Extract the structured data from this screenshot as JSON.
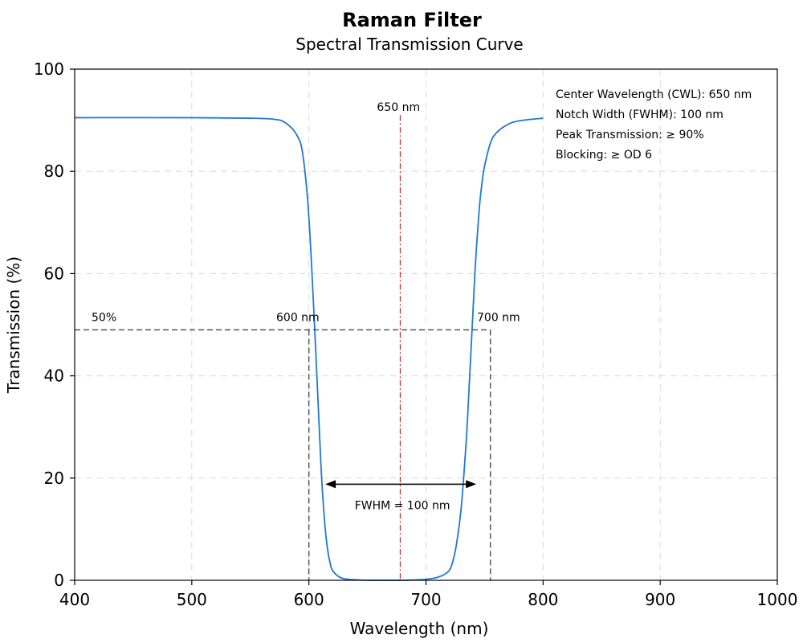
{
  "chart_data": {
    "type": "line",
    "title": "Raman Filter",
    "subtitle": "Spectral Transmission Curve",
    "xlabel": "Wavelength (nm)",
    "ylabel": "Transmission (%)",
    "xlim": [
      400,
      1000
    ],
    "ylim": [
      0,
      100
    ],
    "xticks": [
      400,
      500,
      600,
      700,
      800,
      900,
      1000
    ],
    "yticks": [
      0,
      20,
      40,
      60,
      80,
      100
    ],
    "xtick_labels": [
      "400",
      "500",
      "600",
      "700",
      "800",
      "900",
      "1000"
    ],
    "ytick_labels": [
      "0",
      "20",
      "40",
      "60",
      "80",
      "100"
    ],
    "grid": true,
    "series": [
      {
        "x": [
          400,
          500,
          550,
          570,
          580,
          590,
          595,
          600,
          605,
          610,
          612,
          614,
          616,
          618,
          620,
          625,
          630,
          640,
          650,
          660,
          680,
          700,
          710,
          718,
          722,
          726,
          730,
          734,
          736,
          738,
          740,
          742,
          744,
          746,
          748,
          750,
          755,
          760,
          770,
          780,
          800
        ],
        "y": [
          90.5,
          90.5,
          90.4,
          90.2,
          89.5,
          87.0,
          83.0,
          71.0,
          49.0,
          24.0,
          16.0,
          10.0,
          6.0,
          3.5,
          2.0,
          0.8,
          0.3,
          0.1,
          0.0,
          0.0,
          0.0,
          0.2,
          0.6,
          1.5,
          3.0,
          7.0,
          14.0,
          26.0,
          34.0,
          43.0,
          52.0,
          61.0,
          68.0,
          74.0,
          78.0,
          81.0,
          85.5,
          87.5,
          89.2,
          89.9,
          90.4
        ],
        "color": "#1f78d1"
      }
    ],
    "reference_lines": {
      "half_max_y": 49,
      "left_x": 600,
      "right_x": 755,
      "cwl_x": 678,
      "fwhm_arrow": {
        "x_start": 614,
        "x_end": 743,
        "y": 18.8
      }
    },
    "annotations": {
      "half_max_label": "50%",
      "left_edge_label": "600 nm",
      "right_edge_label": "700 nm",
      "cwl_label": "650 nm",
      "fwhm_label": "FWHM = 100 nm"
    },
    "info_box": [
      "Center Wavelength (CWL): 650 nm",
      "Notch Width (FWHM): 100 nm",
      "Peak Transmission: ≥ 90%",
      "Blocking: ≥ OD 6"
    ],
    "colors": {
      "curve": "#1f78d1",
      "cwl_line": "#d62728",
      "guide": "#555555"
    }
  }
}
